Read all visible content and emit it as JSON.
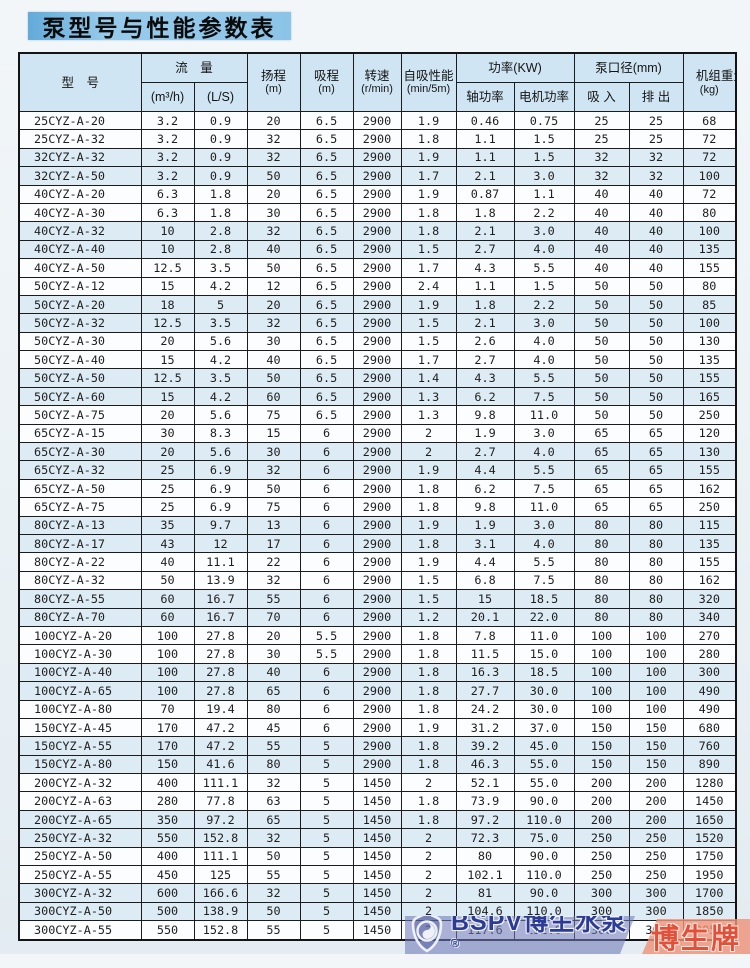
{
  "page_title": "泵型号与性能参数表",
  "table": {
    "headers": {
      "model": "型　号",
      "flow_group": "流　量",
      "flow_m3h_unit": "(m³/h)",
      "flow_ls_unit": "(L/S)",
      "head_label": "扬程",
      "head_unit": "(m)",
      "suction_label": "吸程",
      "suction_unit": "(m)",
      "speed_label": "转速",
      "speed_unit": "(r/min)",
      "selfprime_label": "自吸性能",
      "selfprime_unit": "(min/5m)",
      "power_group": "功率(KW)",
      "power_shaft": "轴功率",
      "power_motor": "电机功率",
      "bore_group": "泵口径(mm)",
      "bore_in": "吸 入",
      "bore_out": "排 出",
      "weight_label": "机组重量",
      "weight_unit": "(kg)"
    },
    "rows": [
      [
        "25CYZ-A-20",
        "3.2",
        "0.9",
        "20",
        "6.5",
        "2900",
        "1.9",
        "0.46",
        "0.75",
        "25",
        "25",
        "68"
      ],
      [
        "25CYZ-A-32",
        "3.2",
        "0.9",
        "32",
        "6.5",
        "2900",
        "1.8",
        "1.1",
        "1.5",
        "25",
        "25",
        "72"
      ],
      [
        "32CYZ-A-32",
        "3.2",
        "0.9",
        "32",
        "6.5",
        "2900",
        "1.9",
        "1.1",
        "1.5",
        "32",
        "32",
        "72"
      ],
      [
        "32CYZ-A-50",
        "3.2",
        "0.9",
        "50",
        "6.5",
        "2900",
        "1.7",
        "2.1",
        "3.0",
        "32",
        "32",
        "100"
      ],
      [
        "40CYZ-A-20",
        "6.3",
        "1.8",
        "20",
        "6.5",
        "2900",
        "1.9",
        "0.87",
        "1.1",
        "40",
        "40",
        "72"
      ],
      [
        "40CYZ-A-30",
        "6.3",
        "1.8",
        "30",
        "6.5",
        "2900",
        "1.8",
        "1.8",
        "2.2",
        "40",
        "40",
        "80"
      ],
      [
        "40CYZ-A-32",
        "10",
        "2.8",
        "32",
        "6.5",
        "2900",
        "1.8",
        "2.1",
        "3.0",
        "40",
        "40",
        "100"
      ],
      [
        "40CYZ-A-40",
        "10",
        "2.8",
        "40",
        "6.5",
        "2900",
        "1.5",
        "2.7",
        "4.0",
        "40",
        "40",
        "135"
      ],
      [
        "40CYZ-A-50",
        "12.5",
        "3.5",
        "50",
        "6.5",
        "2900",
        "1.7",
        "4.3",
        "5.5",
        "40",
        "40",
        "155"
      ],
      [
        "50CYZ-A-12",
        "15",
        "4.2",
        "12",
        "6.5",
        "2900",
        "2.4",
        "1.1",
        "1.5",
        "50",
        "50",
        "80"
      ],
      [
        "50CYZ-A-20",
        "18",
        "5",
        "20",
        "6.5",
        "2900",
        "1.9",
        "1.8",
        "2.2",
        "50",
        "50",
        "85"
      ],
      [
        "50CYZ-A-32",
        "12.5",
        "3.5",
        "32",
        "6.5",
        "2900",
        "1.5",
        "2.1",
        "3.0",
        "50",
        "50",
        "100"
      ],
      [
        "50CYZ-A-30",
        "20",
        "5.6",
        "30",
        "6.5",
        "2900",
        "1.5",
        "2.6",
        "4.0",
        "50",
        "50",
        "130"
      ],
      [
        "50CYZ-A-40",
        "15",
        "4.2",
        "40",
        "6.5",
        "2900",
        "1.7",
        "2.7",
        "4.0",
        "50",
        "50",
        "135"
      ],
      [
        "50CYZ-A-50",
        "12.5",
        "3.5",
        "50",
        "6.5",
        "2900",
        "1.4",
        "4.3",
        "5.5",
        "50",
        "50",
        "155"
      ],
      [
        "50CYZ-A-60",
        "15",
        "4.2",
        "60",
        "6.5",
        "2900",
        "1.3",
        "6.2",
        "7.5",
        "50",
        "50",
        "165"
      ],
      [
        "50CYZ-A-75",
        "20",
        "5.6",
        "75",
        "6.5",
        "2900",
        "1.3",
        "9.8",
        "11.0",
        "50",
        "50",
        "250"
      ],
      [
        "65CYZ-A-15",
        "30",
        "8.3",
        "15",
        "6",
        "2900",
        "2",
        "1.9",
        "3.0",
        "65",
        "65",
        "120"
      ],
      [
        "65CYZ-A-30",
        "20",
        "5.6",
        "30",
        "6",
        "2900",
        "2",
        "2.7",
        "4.0",
        "65",
        "65",
        "130"
      ],
      [
        "65CYZ-A-32",
        "25",
        "6.9",
        "32",
        "6",
        "2900",
        "1.9",
        "4.4",
        "5.5",
        "65",
        "65",
        "155"
      ],
      [
        "65CYZ-A-50",
        "25",
        "6.9",
        "50",
        "6",
        "2900",
        "1.8",
        "6.2",
        "7.5",
        "65",
        "65",
        "162"
      ],
      [
        "65CYZ-A-75",
        "25",
        "6.9",
        "75",
        "6",
        "2900",
        "1.8",
        "9.8",
        "11.0",
        "65",
        "65",
        "250"
      ],
      [
        "80CYZ-A-13",
        "35",
        "9.7",
        "13",
        "6",
        "2900",
        "1.9",
        "1.9",
        "3.0",
        "80",
        "80",
        "115"
      ],
      [
        "80CYZ-A-17",
        "43",
        "12",
        "17",
        "6",
        "2900",
        "1.8",
        "3.1",
        "4.0",
        "80",
        "80",
        "135"
      ],
      [
        "80CYZ-A-22",
        "40",
        "11.1",
        "22",
        "6",
        "2900",
        "1.9",
        "4.4",
        "5.5",
        "80",
        "80",
        "155"
      ],
      [
        "80CYZ-A-32",
        "50",
        "13.9",
        "32",
        "6",
        "2900",
        "1.5",
        "6.8",
        "7.5",
        "80",
        "80",
        "162"
      ],
      [
        "80CYZ-A-55",
        "60",
        "16.7",
        "55",
        "6",
        "2900",
        "1.5",
        "15",
        "18.5",
        "80",
        "80",
        "320"
      ],
      [
        "80CYZ-A-70",
        "60",
        "16.7",
        "70",
        "6",
        "2900",
        "1.2",
        "20.1",
        "22.0",
        "80",
        "80",
        "340"
      ],
      [
        "100CYZ-A-20",
        "100",
        "27.8",
        "20",
        "5.5",
        "2900",
        "1.8",
        "7.8",
        "11.0",
        "100",
        "100",
        "270"
      ],
      [
        "100CYZ-A-30",
        "100",
        "27.8",
        "30",
        "5.5",
        "2900",
        "1.8",
        "11.5",
        "15.0",
        "100",
        "100",
        "280"
      ],
      [
        "100CYZ-A-40",
        "100",
        "27.8",
        "40",
        "6",
        "2900",
        "1.8",
        "16.3",
        "18.5",
        "100",
        "100",
        "300"
      ],
      [
        "100CYZ-A-65",
        "100",
        "27.8",
        "65",
        "6",
        "2900",
        "1.8",
        "27.7",
        "30.0",
        "100",
        "100",
        "490"
      ],
      [
        "100CYZ-A-80",
        "70",
        "19.4",
        "80",
        "6",
        "2900",
        "1.8",
        "24.2",
        "30.0",
        "100",
        "100",
        "490"
      ],
      [
        "150CYZ-A-45",
        "170",
        "47.2",
        "45",
        "6",
        "2900",
        "1.9",
        "31.2",
        "37.0",
        "150",
        "150",
        "680"
      ],
      [
        "150CYZ-A-55",
        "170",
        "47.2",
        "55",
        "5",
        "2900",
        "1.8",
        "39.2",
        "45.0",
        "150",
        "150",
        "760"
      ],
      [
        "150CYZ-A-80",
        "150",
        "41.6",
        "80",
        "5",
        "2900",
        "1.8",
        "46.3",
        "55.0",
        "150",
        "150",
        "890"
      ],
      [
        "200CYZ-A-32",
        "400",
        "111.1",
        "32",
        "5",
        "1450",
        "2",
        "52.1",
        "55.0",
        "200",
        "200",
        "1280"
      ],
      [
        "200CYZ-A-63",
        "280",
        "77.8",
        "63",
        "5",
        "1450",
        "1.8",
        "73.9",
        "90.0",
        "200",
        "200",
        "1450"
      ],
      [
        "200CYZ-A-65",
        "350",
        "97.2",
        "65",
        "5",
        "1450",
        "1.8",
        "97.2",
        "110.0",
        "200",
        "200",
        "1650"
      ],
      [
        "250CYZ-A-32",
        "550",
        "152.8",
        "32",
        "5",
        "1450",
        "2",
        "72.3",
        "75.0",
        "250",
        "250",
        "1520"
      ],
      [
        "250CYZ-A-50",
        "400",
        "111.1",
        "50",
        "5",
        "1450",
        "2",
        "80",
        "90.0",
        "250",
        "250",
        "1750"
      ],
      [
        "250CYZ-A-55",
        "450",
        "125",
        "55",
        "5",
        "1450",
        "2",
        "102.1",
        "110.0",
        "250",
        "250",
        "1950"
      ],
      [
        "300CYZ-A-32",
        "600",
        "166.6",
        "32",
        "5",
        "1450",
        "2",
        "81",
        "90.0",
        "300",
        "300",
        "1700"
      ],
      [
        "300CYZ-A-50",
        "500",
        "138.9",
        "50",
        "5",
        "1450",
        "2",
        "104.6",
        "110.0",
        "300",
        "300",
        "1850"
      ],
      [
        "300CYZ-A-55",
        "550",
        "152.8",
        "55",
        "5",
        "1450",
        "2",
        "117.6",
        "132.0",
        "300",
        "300",
        "2050"
      ]
    ]
  },
  "watermark": {
    "brand_text": "BSPV博生水泵",
    "registered_mark": "®",
    "brand_label": "博生牌"
  },
  "colors": {
    "title_bar": "#8cc4e8",
    "header_bg": "#cfe5f3",
    "row_tint": "#dcebf4",
    "table_border": "#1c1c1c",
    "watermark_blue_band": "#707ab8",
    "watermark_red_band": "#ee927a",
    "watermark_text_blue": "#2c3c96",
    "watermark_text_red": "#e2503a"
  }
}
